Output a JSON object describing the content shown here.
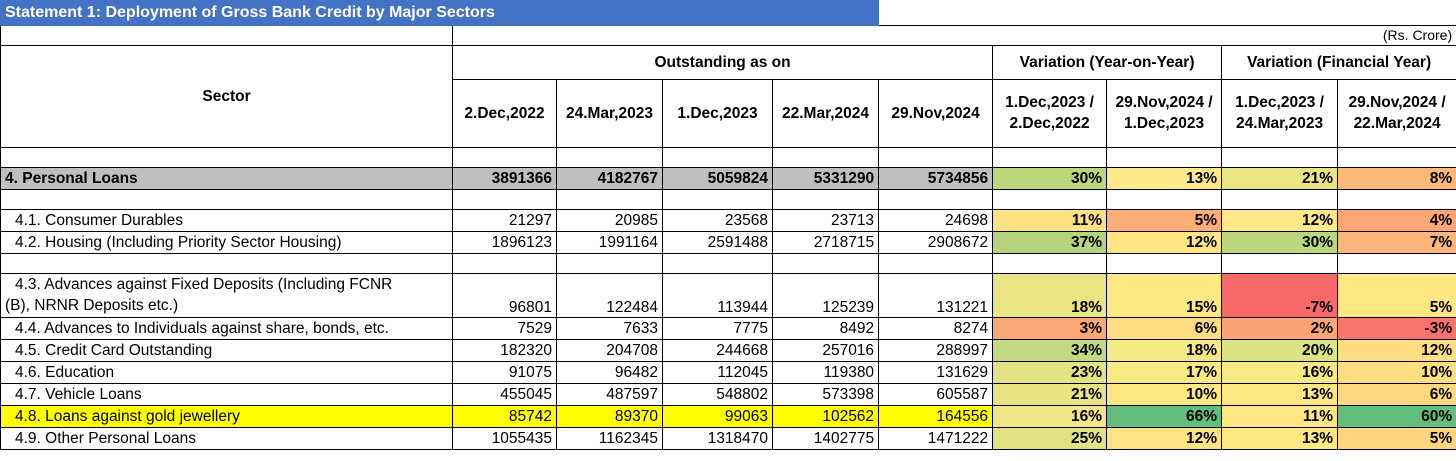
{
  "title": "Statement 1: Deployment of Gross Bank Credit by Major Sectors",
  "unit": "(Rs. Crore)",
  "headers": {
    "sector": "Sector",
    "outstanding": "Outstanding as on",
    "yoy": "Variation (Year-on-Year)",
    "fy": "Variation (Financial Year)",
    "dates": [
      "2.Dec,2022",
      "24.Mar,2023",
      "1.Dec,2023",
      "22.Mar,2024",
      "29.Nov,2024"
    ],
    "yoy_cols": [
      {
        "top": "1.Dec,2023 /",
        "bottom": "2.Dec,2022"
      },
      {
        "top": "29.Nov,2024 /",
        "bottom": "1.Dec,2023"
      }
    ],
    "fy_cols": [
      {
        "top": "1.Dec,2023 /",
        "bottom": "24.Mar,2023"
      },
      {
        "top": "29.Nov,2024 /",
        "bottom": "22.Mar,2024"
      }
    ]
  },
  "rows": [
    {
      "label": "4. Personal Loans",
      "values": [
        "3891366",
        "4182767",
        "5059824",
        "5331290",
        "5734856"
      ],
      "pct": [
        "30%",
        "13%",
        "21%",
        "8%"
      ],
      "pct_colors": [
        "#bcd67a",
        "#ffe98a",
        "#e9e583",
        "#fdb97a"
      ]
    },
    {
      "label": "4.1. Consumer Durables",
      "values": [
        "21297",
        "20985",
        "23568",
        "23713",
        "24698"
      ],
      "pct": [
        "11%",
        "5%",
        "12%",
        "4%"
      ],
      "pct_colors": [
        "#fee182",
        "#fdae76",
        "#ffe98a",
        "#fca575"
      ]
    },
    {
      "label": "4.2. Housing (Including Priority Sector Housing)",
      "values": [
        "1896123",
        "1991164",
        "2591488",
        "2718715",
        "2908672"
      ],
      "pct": [
        "37%",
        "12%",
        "30%",
        "7%"
      ],
      "pct_colors": [
        "#b5d47c",
        "#fee482",
        "#bcd67a",
        "#fdb67a"
      ]
    },
    {
      "label_line1": "4.3. Advances against Fixed Deposits (Including FCNR",
      "label_line2": "(B), NRNR Deposits etc.)",
      "values": [
        "96801",
        "122484",
        "113944",
        "125239",
        "131221"
      ],
      "pct": [
        "18%",
        "15%",
        "-7%",
        "5%"
      ],
      "pct_colors": [
        "#e9e583",
        "#fde884",
        "#f8696b",
        "#ffe883"
      ]
    },
    {
      "label": "4.4. Advances to Individuals against share, bonds, etc.",
      "values": [
        "7529",
        "7633",
        "7775",
        "8492",
        "8274"
      ],
      "pct": [
        "3%",
        "6%",
        "2%",
        "-3%"
      ],
      "pct_colors": [
        "#fba876",
        "#fedd81",
        "#fba476",
        "#f8736d"
      ]
    },
    {
      "label": "4.5. Credit Card Outstanding",
      "values": [
        "182320",
        "204708",
        "244668",
        "257016",
        "288997"
      ],
      "pct": [
        "34%",
        "18%",
        "20%",
        "12%"
      ],
      "pct_colors": [
        "#c3d880",
        "#f2e884",
        "#dae482",
        "#fede81"
      ]
    },
    {
      "label": "4.6. Education",
      "values": [
        "91075",
        "96482",
        "112045",
        "119380",
        "131629"
      ],
      "pct": [
        "23%",
        "17%",
        "16%",
        "10%"
      ],
      "pct_colors": [
        "#e3e383",
        "#f8e984",
        "#f9e984",
        "#fede81"
      ]
    },
    {
      "label": "4.7. Vehicle Loans",
      "values": [
        "455045",
        "487597",
        "548802",
        "573398",
        "605587"
      ],
      "pct": [
        "21%",
        "10%",
        "13%",
        "6%"
      ],
      "pct_colors": [
        "#e7e583",
        "#ffe783",
        "#ffe883",
        "#ffd780"
      ]
    },
    {
      "label": "4.8. Loans against gold jewellery",
      "values": [
        "85742",
        "89370",
        "99063",
        "102562",
        "164556"
      ],
      "pct": [
        "16%",
        "66%",
        "11%",
        "60%"
      ],
      "pct_colors": [
        "#f2e784",
        "#63be7b",
        "#ffe783",
        "#63be7b"
      ],
      "highlight": true
    },
    {
      "label": "4.9. Other Personal Loans",
      "values": [
        "1055435",
        "1162345",
        "1318470",
        "1402775",
        "1471222"
      ],
      "pct": [
        "25%",
        "12%",
        "13%",
        "5%"
      ],
      "pct_colors": [
        "#dfe382",
        "#fde383",
        "#fee984",
        "#ffd580"
      ]
    }
  ]
}
